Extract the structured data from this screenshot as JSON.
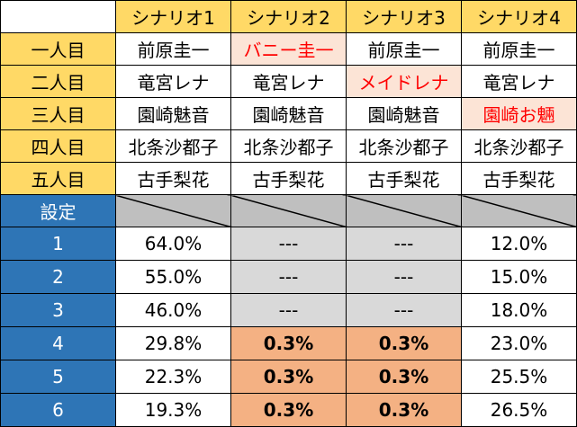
{
  "header": {
    "scenarios": [
      "シナリオ1",
      "シナリオ2",
      "シナリオ3",
      "シナリオ4"
    ]
  },
  "roles": [
    {
      "label": "一人目",
      "cells": [
        "前原圭一",
        "バニー圭一",
        "前原圭一",
        "前原圭一"
      ]
    },
    {
      "label": "二人目",
      "cells": [
        "竜宮レナ",
        "竜宮レナ",
        "メイドレナ",
        "竜宮レナ"
      ]
    },
    {
      "label": "三人目",
      "cells": [
        "園崎魅音",
        "園崎魅音",
        "園崎魅音",
        "園崎お魎"
      ]
    },
    {
      "label": "四人目",
      "cells": [
        "北条沙都子",
        "北条沙都子",
        "北条沙都子",
        "北条沙都子"
      ]
    },
    {
      "label": "五人目",
      "cells": [
        "古手梨花",
        "古手梨花",
        "古手梨花",
        "古手梨花"
      ]
    }
  ],
  "settings": {
    "header": "設定",
    "rows": [
      {
        "label": "1",
        "cells": [
          "64.0%",
          "---",
          "---",
          "12.0%"
        ]
      },
      {
        "label": "2",
        "cells": [
          "55.0%",
          "---",
          "---",
          "15.0%"
        ]
      },
      {
        "label": "3",
        "cells": [
          "46.0%",
          "---",
          "---",
          "18.0%"
        ]
      },
      {
        "label": "4",
        "cells": [
          "29.8%",
          "0.3%",
          "0.3%",
          "23.0%"
        ]
      },
      {
        "label": "5",
        "cells": [
          "22.3%",
          "0.3%",
          "0.3%",
          "25.5%"
        ]
      },
      {
        "label": "6",
        "cells": [
          "19.3%",
          "0.3%",
          "0.3%",
          "26.5%"
        ]
      }
    ]
  },
  "colors": {
    "header_fill": "#ffd966",
    "setting_fill": "#2e75b6",
    "na_fill": "#d9d9d9",
    "low_fill": "#f4b183",
    "highlight_fill": "#fce4d6",
    "highlight_text": "#ff0000"
  }
}
